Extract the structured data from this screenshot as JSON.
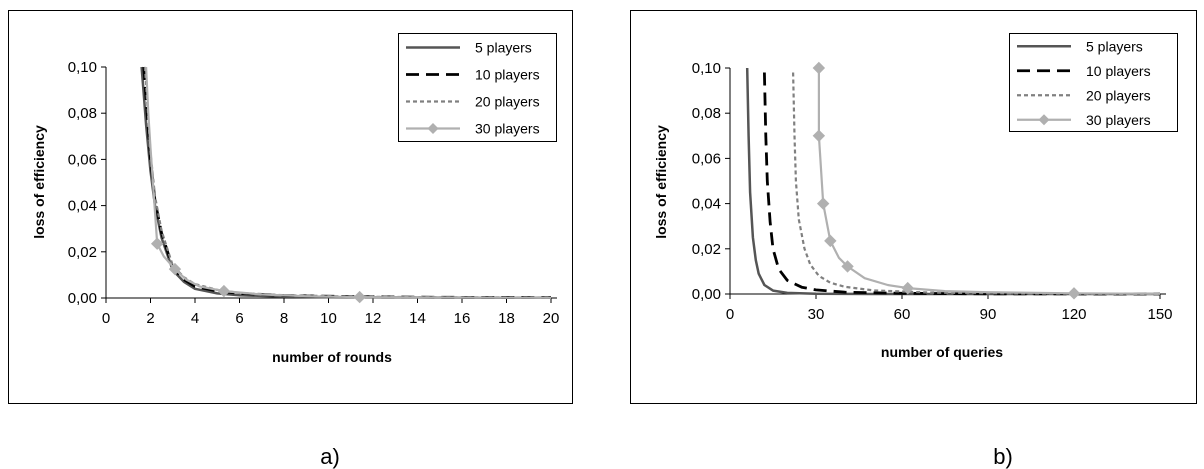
{
  "chart_data": [
    {
      "type": "line",
      "caption": "a)",
      "xlabel": "number of rounds",
      "ylabel": "loss of efficiency",
      "xlim": [
        0,
        20
      ],
      "ylim": [
        0,
        0.1
      ],
      "xticks": [
        0,
        2,
        4,
        6,
        8,
        10,
        12,
        14,
        16,
        18,
        20
      ],
      "xtick_labels": [
        "0",
        "2",
        "4",
        "6",
        "8",
        "10",
        "12",
        "14",
        "16",
        "18",
        "20"
      ],
      "yticks": [
        0,
        0.02,
        0.04,
        0.06,
        0.08,
        0.1
      ],
      "ytick_labels": [
        "0,00",
        "0,02",
        "0,04",
        "0,06",
        "0,08",
        "0,10"
      ],
      "grid": false,
      "legend": "top-right",
      "series": [
        {
          "name": "5 players",
          "style": "solid",
          "color": "#555555",
          "x": [
            1.6,
            1.7,
            1.8,
            2.0,
            2.2,
            2.5,
            3.0,
            3.5,
            4.0,
            5.0,
            6.0,
            8.0,
            10.0,
            14.0,
            20.0
          ],
          "y": [
            0.1,
            0.088,
            0.075,
            0.055,
            0.04,
            0.026,
            0.012,
            0.007,
            0.004,
            0.002,
            0.0012,
            0.0006,
            0.0003,
            0.0002,
            0.0001
          ]
        },
        {
          "name": "10 players",
          "style": "dashed",
          "color": "#000000",
          "x": [
            1.7,
            1.8,
            2.0,
            2.2,
            2.5,
            3.0,
            3.5,
            4.0,
            5.0,
            6.0,
            8.0,
            11.0,
            15.0,
            20.0
          ],
          "y": [
            0.1,
            0.086,
            0.06,
            0.042,
            0.028,
            0.013,
            0.008,
            0.005,
            0.003,
            0.002,
            0.0011,
            0.0006,
            0.0003,
            0.0002
          ]
        },
        {
          "name": "20 players",
          "style": "dotted",
          "color": "#808080",
          "x": [
            1.75,
            1.85,
            2.0,
            2.2,
            2.5,
            3.0,
            3.5,
            4.0,
            5.0,
            6.0,
            8.0,
            11.0,
            15.0,
            20.0
          ],
          "y": [
            0.1,
            0.085,
            0.063,
            0.044,
            0.029,
            0.014,
            0.009,
            0.006,
            0.0035,
            0.0022,
            0.0012,
            0.0006,
            0.0003,
            0.0002
          ]
        },
        {
          "name": "30 players",
          "style": "solid-marker",
          "color": "#b0b0b0",
          "x": [
            1.8,
            1.9,
            2.0,
            2.3,
            2.6,
            3.1,
            3.6,
            4.2,
            5.3,
            7.0,
            9.0,
            11.4,
            15.0,
            20.0
          ],
          "y": [
            0.1,
            0.08,
            0.065,
            0.0235,
            0.018,
            0.0125,
            0.008,
            0.005,
            0.003,
            0.0015,
            0.0008,
            0.0004,
            0.0002,
            0.0001
          ],
          "markers_x": [
            2.3,
            3.1,
            5.3,
            11.4
          ],
          "markers_y": [
            0.0235,
            0.0125,
            0.003,
            0.0004
          ]
        }
      ]
    },
    {
      "type": "line",
      "caption": "b)",
      "xlabel": "number of queries",
      "ylabel": "loss of efficiency",
      "xlim": [
        0,
        150
      ],
      "ylim": [
        0,
        0.1
      ],
      "xticks": [
        0,
        30,
        60,
        90,
        120,
        150
      ],
      "xtick_labels": [
        "0",
        "30",
        "60",
        "90",
        "120",
        "150"
      ],
      "yticks": [
        0,
        0.02,
        0.04,
        0.06,
        0.08,
        0.1
      ],
      "ytick_labels": [
        "0,00",
        "0,02",
        "0,04",
        "0,06",
        "0,08",
        "0,10"
      ],
      "grid": false,
      "legend": "top-right",
      "series": [
        {
          "name": "5 players",
          "style": "solid",
          "color": "#555555",
          "x": [
            6,
            6.5,
            7,
            8,
            9,
            10,
            12,
            15,
            20,
            30,
            50,
            150
          ],
          "y": [
            0.1,
            0.07,
            0.045,
            0.025,
            0.015,
            0.009,
            0.004,
            0.0015,
            0.0005,
            0.0001,
            0.0,
            0.0
          ]
        },
        {
          "name": "10 players",
          "style": "dashed",
          "color": "#000000",
          "x": [
            12,
            12.5,
            13,
            14,
            15,
            17,
            20,
            25,
            30,
            40,
            60,
            90,
            150
          ],
          "y": [
            0.098,
            0.07,
            0.05,
            0.032,
            0.02,
            0.011,
            0.006,
            0.003,
            0.0018,
            0.0008,
            0.0003,
            0.0001,
            0.0
          ]
        },
        {
          "name": "20 players",
          "style": "dotted",
          "color": "#808080",
          "x": [
            22,
            22.5,
            23,
            24,
            26,
            28,
            31,
            35,
            40,
            50,
            70,
            100,
            150
          ],
          "y": [
            0.098,
            0.07,
            0.05,
            0.033,
            0.02,
            0.013,
            0.008,
            0.005,
            0.0032,
            0.0016,
            0.0006,
            0.0002,
            0.0
          ]
        },
        {
          "name": "30 players",
          "style": "solid-marker",
          "color": "#b0b0b0",
          "x": [
            31,
            31,
            32.5,
            35,
            38,
            41,
            47,
            55,
            62,
            75,
            90,
            120,
            150
          ],
          "y": [
            0.1,
            0.07,
            0.04,
            0.0235,
            0.016,
            0.0122,
            0.007,
            0.004,
            0.0026,
            0.0013,
            0.0008,
            0.0003,
            0.0001
          ],
          "markers_x": [
            31,
            31,
            32.5,
            35,
            41,
            62,
            120
          ],
          "markers_y": [
            0.1,
            0.07,
            0.04,
            0.0235,
            0.0122,
            0.0026,
            0.0003
          ]
        }
      ]
    }
  ]
}
